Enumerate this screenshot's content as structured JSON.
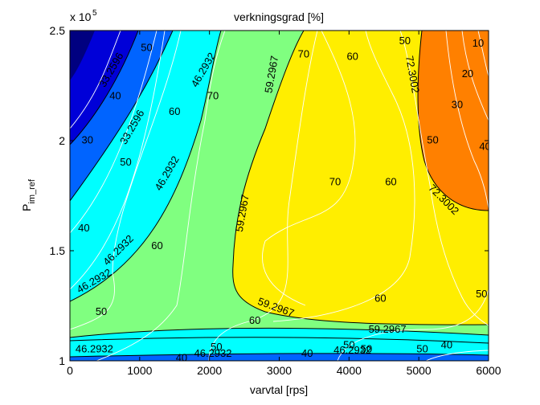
{
  "chart_data": {
    "type": "contour",
    "title": "verkningsgrad [%]",
    "xlabel": "varvtal [rps]",
    "ylabel_main": "P",
    "ylabel_sub": "im_ref",
    "y_exponent_base": "x 10",
    "y_exponent_power": "5",
    "xlim": [
      0,
      6000
    ],
    "ylim": [
      1,
      2.5
    ],
    "x_ticks": [
      0,
      1000,
      2000,
      3000,
      4000,
      5000,
      6000
    ],
    "x_tick_labels": [
      "0",
      "1000",
      "2000",
      "3000",
      "4000",
      "5000",
      "6000"
    ],
    "y_ticks": [
      1,
      1.5,
      2,
      2.5
    ],
    "y_tick_labels": [
      "1",
      "1.5",
      "2",
      "2.5"
    ],
    "y_multiplier": 100000,
    "filled_levels": [
      {
        "level": "33.2596",
        "color": "#0000c8"
      },
      {
        "level": "33.2596",
        "color": "#0064ff"
      },
      {
        "level": "33.2596",
        "color": "#00ffff"
      },
      {
        "level": "46.2932",
        "color": "#80ff80"
      },
      {
        "level": "59.2967",
        "color": "#ffee00"
      },
      {
        "level": "72.3002",
        "color": "#ff8000"
      }
    ],
    "contour_line_labels": [
      {
        "text": "50",
        "x": 1100,
        "y": 2.42
      },
      {
        "text": "40",
        "x": 650,
        "y": 2.2
      },
      {
        "text": "30",
        "x": 250,
        "y": 2.0
      },
      {
        "text": "50",
        "x": 800,
        "y": 1.9
      },
      {
        "text": "40",
        "x": 200,
        "y": 1.6
      },
      {
        "text": "50",
        "x": 450,
        "y": 1.22
      },
      {
        "text": "60",
        "x": 1500,
        "y": 2.13
      },
      {
        "text": "70",
        "x": 2050,
        "y": 2.2
      },
      {
        "text": "60",
        "x": 1250,
        "y": 1.52
      },
      {
        "text": "50",
        "x": 2100,
        "y": 1.06
      },
      {
        "text": "40",
        "x": 1600,
        "y": 1.01
      },
      {
        "text": "60",
        "x": 2650,
        "y": 1.18
      },
      {
        "text": "70",
        "x": 3350,
        "y": 2.39
      },
      {
        "text": "60",
        "x": 4050,
        "y": 2.38
      },
      {
        "text": "50",
        "x": 4800,
        "y": 2.45
      },
      {
        "text": "70",
        "x": 3800,
        "y": 1.81
      },
      {
        "text": "60",
        "x": 4600,
        "y": 1.81
      },
      {
        "text": "60",
        "x": 4450,
        "y": 1.28
      },
      {
        "text": "50",
        "x": 4000,
        "y": 1.07
      },
      {
        "text": "40",
        "x": 3400,
        "y": 1.03
      },
      {
        "text": "40",
        "x": 5400,
        "y": 1.07
      },
      {
        "text": "50",
        "x": 5900,
        "y": 1.3
      },
      {
        "text": "10",
        "x": 5850,
        "y": 2.44
      },
      {
        "text": "20",
        "x": 5700,
        "y": 2.3
      },
      {
        "text": "30",
        "x": 5550,
        "y": 2.16
      },
      {
        "text": "40",
        "x": 5950,
        "y": 1.97
      },
      {
        "text": "50",
        "x": 5200,
        "y": 2.0
      },
      {
        "text": "50",
        "x": 4250,
        "y": 1.05
      },
      {
        "text": "50",
        "x": 5050,
        "y": 1.05
      }
    ],
    "level_labels": [
      {
        "text": "33.2596",
        "x": 600,
        "y": 2.32,
        "rot": -60
      },
      {
        "text": "33.2596",
        "x": 900,
        "y": 2.06,
        "rot": -60
      },
      {
        "text": "46.2932",
        "x": 1920,
        "y": 2.32,
        "rot": -60
      },
      {
        "text": "46.2932",
        "x": 1400,
        "y": 1.85,
        "rot": -60
      },
      {
        "text": "46.2932",
        "x": 700,
        "y": 1.5,
        "rot": -45
      },
      {
        "text": "46.2932",
        "x": 350,
        "y": 1.36,
        "rot": -30
      },
      {
        "text": "46.2932",
        "x": 350,
        "y": 1.05,
        "rot": 0
      },
      {
        "text": "46.2932",
        "x": 2050,
        "y": 1.03,
        "rot": 0
      },
      {
        "text": "46.2932",
        "x": 4050,
        "y": 1.045,
        "rot": 0
      },
      {
        "text": "59.2967",
        "x": 2900,
        "y": 2.3,
        "rot": -80
      },
      {
        "text": "59.2967",
        "x": 2480,
        "y": 1.67,
        "rot": -80
      },
      {
        "text": "59.2967",
        "x": 2950,
        "y": 1.24,
        "rot": 20
      },
      {
        "text": "59.2967",
        "x": 4550,
        "y": 1.14,
        "rot": 0
      },
      {
        "text": "72.3002",
        "x": 4900,
        "y": 2.3,
        "rot": 80
      },
      {
        "text": "72.3002",
        "x": 5350,
        "y": 1.73,
        "rot": 45
      }
    ]
  }
}
